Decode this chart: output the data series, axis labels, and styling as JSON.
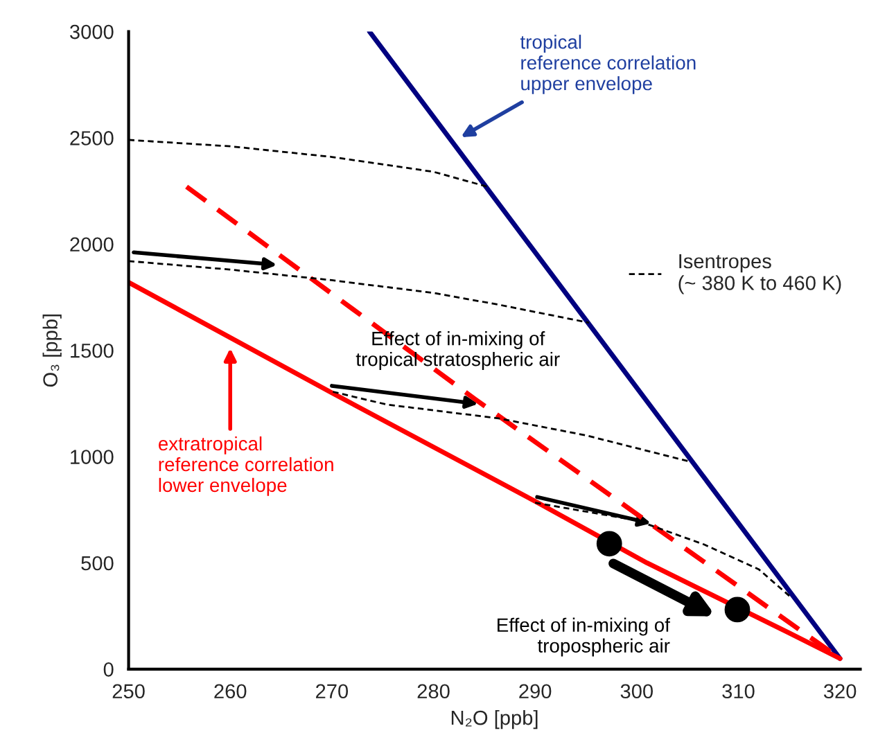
{
  "chart_data": {
    "type": "line",
    "xlabel": "N₂O [ppb]",
    "ylabel": "O₃ [ppb]",
    "xlim": [
      250,
      322
    ],
    "ylim": [
      0,
      3000
    ],
    "xticks": [
      250,
      260,
      270,
      280,
      290,
      300,
      310,
      320
    ],
    "yticks": [
      0,
      500,
      1000,
      1500,
      2000,
      2500,
      3000
    ],
    "grid": false,
    "legend": "right",
    "series": [
      {
        "color": "#000080",
        "x": [
          273.7,
          320
        ],
        "values": [
          3000,
          50
        ]
      },
      {
        "color": "#ff0000",
        "x": [
          250,
          270,
          290,
          301,
          315,
          320
        ],
        "values": [
          1820,
          1300,
          790,
          500,
          170,
          50
        ]
      },
      {
        "color": "#ff0000",
        "line_style": "dashed",
        "x": [
          255.7,
          284.1,
          320
        ],
        "values": [
          2270,
          1270,
          50
        ]
      },
      {
        "name": "Isentropes\n(~ 380 K to 460 K)",
        "color": "#000000",
        "line_style": "dotted",
        "x": [
          250,
          260,
          270,
          280,
          285.3
        ],
        "values": [
          2490,
          2460,
          2410,
          2340,
          2270
        ]
      },
      {
        "color": "#000000",
        "line_style": "dotted",
        "x": [
          250,
          260,
          270,
          280,
          286.4,
          295.3
        ],
        "values": [
          1920,
          1880,
          1830,
          1770,
          1715,
          1630
        ]
      },
      {
        "color": "#000000",
        "line_style": "dotted",
        "x": [
          270.1,
          275.4,
          286.4,
          295,
          305.1
        ],
        "values": [
          1305,
          1245,
          1180,
          1100,
          978
        ]
      },
      {
        "color": "#000000",
        "line_style": "dotted",
        "x": [
          290,
          300,
          306.6,
          312,
          315.3
        ],
        "values": [
          783,
          700,
          587,
          470,
          333
        ]
      },
      {
        "type": "scatter",
        "color": "#000000",
        "marker": "circle",
        "x": [
          297.3,
          309.9
        ],
        "values": [
          590,
          280
        ]
      }
    ],
    "annotations": [
      "tropical\nreference correlation\nupper envelope",
      "extratropical\nreference correlation\nlower envelope",
      "Effect of in-mixing of\ntropical stratospheric air",
      "Effect of in-mixing of\ntropospheric air"
    ]
  }
}
